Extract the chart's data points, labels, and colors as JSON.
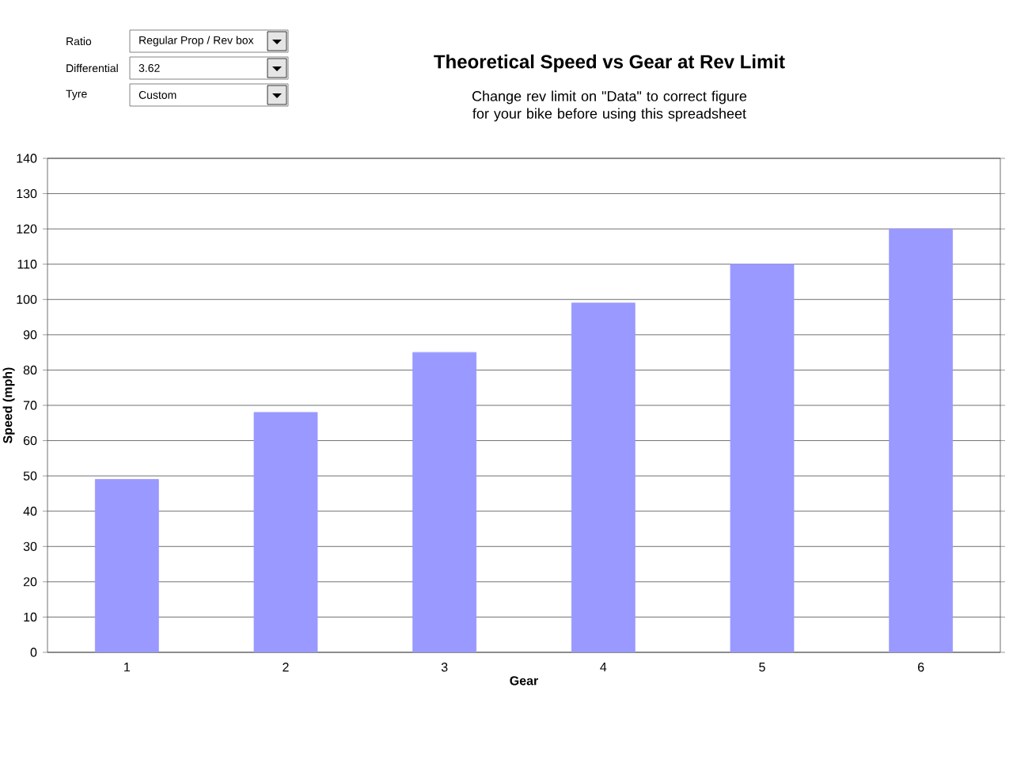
{
  "chart_data": {
    "type": "bar",
    "title": "Theoretical Speed vs Gear at Rev Limit",
    "subtitle": "Change rev limit on \"Data\" to correct figure for your bike before using this spreadsheet",
    "xlabel": "Gear",
    "ylabel": "Speed (mph)",
    "categories": [
      "1",
      "2",
      "3",
      "4",
      "5",
      "6"
    ],
    "values": [
      49,
      68,
      85,
      99,
      110,
      120
    ],
    "color": "#9999ff",
    "ylim": [
      0,
      140
    ],
    "yticks": [
      0,
      10,
      20,
      30,
      40,
      50,
      60,
      70,
      80,
      90,
      100,
      110,
      120,
      130,
      140
    ],
    "grid": "y",
    "annotations": [
      "Ratio",
      "Regular Prop / Rev box",
      "Differential",
      "3.62",
      "Tyre",
      "Custom"
    ]
  }
}
